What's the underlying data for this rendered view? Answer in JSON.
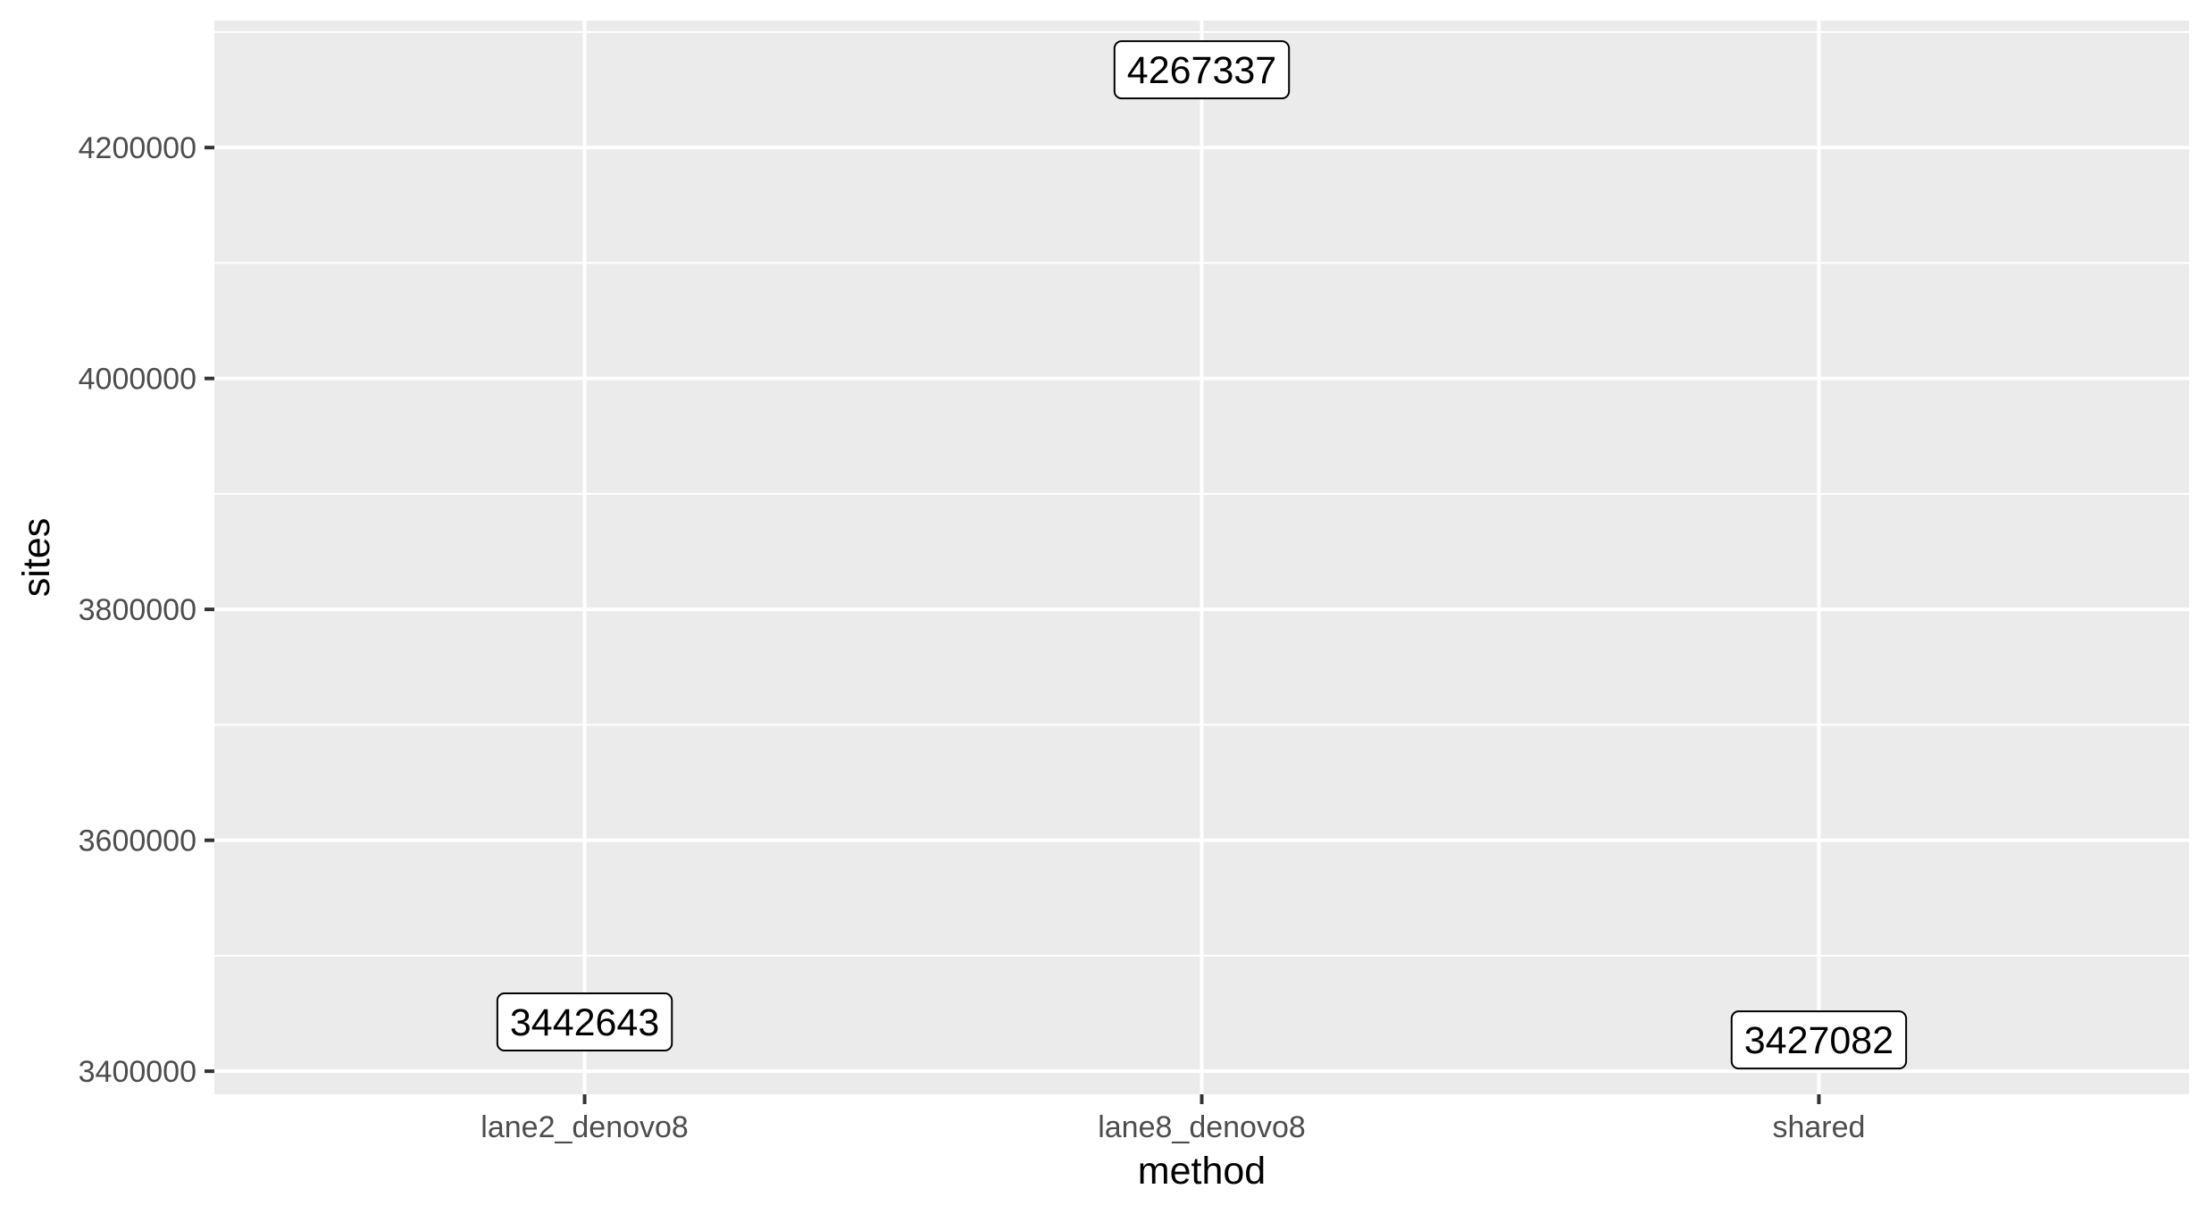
{
  "chart_data": {
    "type": "scatter",
    "geom": "label",
    "xlabel": "method",
    "ylabel": "sites",
    "categories": [
      "lane2_denovo8",
      "lane8_denovo8",
      "shared"
    ],
    "values": [
      3442643,
      4267337,
      3427082
    ],
    "labels": [
      "3442643",
      "4267337",
      "3427082"
    ],
    "ylim": [
      3380000,
      4310000
    ],
    "yticks": [
      3400000,
      3600000,
      3800000,
      4000000,
      4200000
    ],
    "ytick_labels": [
      "3400000",
      "3600000",
      "3800000",
      "4000000",
      "4200000"
    ],
    "grid": true,
    "legend": "none",
    "colors": {
      "panel": "#ebebeb",
      "grid": "#ffffff",
      "tick_text": "#4d4d4d",
      "tick_mark": "#333333",
      "label_fill": "#ffffff",
      "label_border": "#000000"
    }
  }
}
